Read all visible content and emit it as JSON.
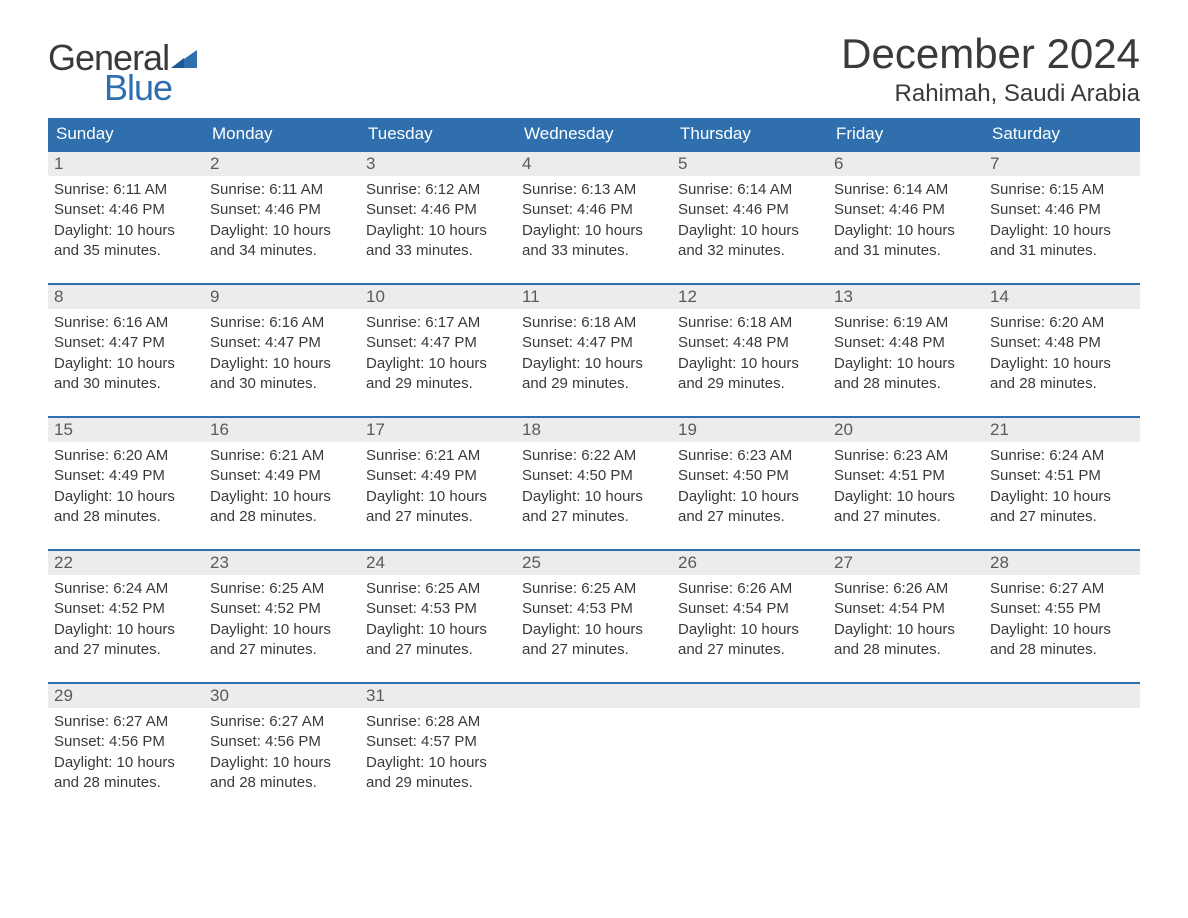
{
  "brand": {
    "word1": "General",
    "word2": "Blue"
  },
  "title": "December 2024",
  "location": "Rahimah, Saudi Arabia",
  "colors": {
    "header_bg": "#2f6fae",
    "header_text": "#ffffff",
    "daynum_bg": "#ececec",
    "border_top": "#2f6fae",
    "text": "#3a3a3a",
    "logo_blue": "#2f6fae"
  },
  "day_headers": [
    "Sunday",
    "Monday",
    "Tuesday",
    "Wednesday",
    "Thursday",
    "Friday",
    "Saturday"
  ],
  "weeks": [
    [
      {
        "n": "1",
        "sr": "Sunrise: 6:11 AM",
        "ss": "Sunset: 4:46 PM",
        "d1": "Daylight: 10 hours",
        "d2": "and 35 minutes."
      },
      {
        "n": "2",
        "sr": "Sunrise: 6:11 AM",
        "ss": "Sunset: 4:46 PM",
        "d1": "Daylight: 10 hours",
        "d2": "and 34 minutes."
      },
      {
        "n": "3",
        "sr": "Sunrise: 6:12 AM",
        "ss": "Sunset: 4:46 PM",
        "d1": "Daylight: 10 hours",
        "d2": "and 33 minutes."
      },
      {
        "n": "4",
        "sr": "Sunrise: 6:13 AM",
        "ss": "Sunset: 4:46 PM",
        "d1": "Daylight: 10 hours",
        "d2": "and 33 minutes."
      },
      {
        "n": "5",
        "sr": "Sunrise: 6:14 AM",
        "ss": "Sunset: 4:46 PM",
        "d1": "Daylight: 10 hours",
        "d2": "and 32 minutes."
      },
      {
        "n": "6",
        "sr": "Sunrise: 6:14 AM",
        "ss": "Sunset: 4:46 PM",
        "d1": "Daylight: 10 hours",
        "d2": "and 31 minutes."
      },
      {
        "n": "7",
        "sr": "Sunrise: 6:15 AM",
        "ss": "Sunset: 4:46 PM",
        "d1": "Daylight: 10 hours",
        "d2": "and 31 minutes."
      }
    ],
    [
      {
        "n": "8",
        "sr": "Sunrise: 6:16 AM",
        "ss": "Sunset: 4:47 PM",
        "d1": "Daylight: 10 hours",
        "d2": "and 30 minutes."
      },
      {
        "n": "9",
        "sr": "Sunrise: 6:16 AM",
        "ss": "Sunset: 4:47 PM",
        "d1": "Daylight: 10 hours",
        "d2": "and 30 minutes."
      },
      {
        "n": "10",
        "sr": "Sunrise: 6:17 AM",
        "ss": "Sunset: 4:47 PM",
        "d1": "Daylight: 10 hours",
        "d2": "and 29 minutes."
      },
      {
        "n": "11",
        "sr": "Sunrise: 6:18 AM",
        "ss": "Sunset: 4:47 PM",
        "d1": "Daylight: 10 hours",
        "d2": "and 29 minutes."
      },
      {
        "n": "12",
        "sr": "Sunrise: 6:18 AM",
        "ss": "Sunset: 4:48 PM",
        "d1": "Daylight: 10 hours",
        "d2": "and 29 minutes."
      },
      {
        "n": "13",
        "sr": "Sunrise: 6:19 AM",
        "ss": "Sunset: 4:48 PM",
        "d1": "Daylight: 10 hours",
        "d2": "and 28 minutes."
      },
      {
        "n": "14",
        "sr": "Sunrise: 6:20 AM",
        "ss": "Sunset: 4:48 PM",
        "d1": "Daylight: 10 hours",
        "d2": "and 28 minutes."
      }
    ],
    [
      {
        "n": "15",
        "sr": "Sunrise: 6:20 AM",
        "ss": "Sunset: 4:49 PM",
        "d1": "Daylight: 10 hours",
        "d2": "and 28 minutes."
      },
      {
        "n": "16",
        "sr": "Sunrise: 6:21 AM",
        "ss": "Sunset: 4:49 PM",
        "d1": "Daylight: 10 hours",
        "d2": "and 28 minutes."
      },
      {
        "n": "17",
        "sr": "Sunrise: 6:21 AM",
        "ss": "Sunset: 4:49 PM",
        "d1": "Daylight: 10 hours",
        "d2": "and 27 minutes."
      },
      {
        "n": "18",
        "sr": "Sunrise: 6:22 AM",
        "ss": "Sunset: 4:50 PM",
        "d1": "Daylight: 10 hours",
        "d2": "and 27 minutes."
      },
      {
        "n": "19",
        "sr": "Sunrise: 6:23 AM",
        "ss": "Sunset: 4:50 PM",
        "d1": "Daylight: 10 hours",
        "d2": "and 27 minutes."
      },
      {
        "n": "20",
        "sr": "Sunrise: 6:23 AM",
        "ss": "Sunset: 4:51 PM",
        "d1": "Daylight: 10 hours",
        "d2": "and 27 minutes."
      },
      {
        "n": "21",
        "sr": "Sunrise: 6:24 AM",
        "ss": "Sunset: 4:51 PM",
        "d1": "Daylight: 10 hours",
        "d2": "and 27 minutes."
      }
    ],
    [
      {
        "n": "22",
        "sr": "Sunrise: 6:24 AM",
        "ss": "Sunset: 4:52 PM",
        "d1": "Daylight: 10 hours",
        "d2": "and 27 minutes."
      },
      {
        "n": "23",
        "sr": "Sunrise: 6:25 AM",
        "ss": "Sunset: 4:52 PM",
        "d1": "Daylight: 10 hours",
        "d2": "and 27 minutes."
      },
      {
        "n": "24",
        "sr": "Sunrise: 6:25 AM",
        "ss": "Sunset: 4:53 PM",
        "d1": "Daylight: 10 hours",
        "d2": "and 27 minutes."
      },
      {
        "n": "25",
        "sr": "Sunrise: 6:25 AM",
        "ss": "Sunset: 4:53 PM",
        "d1": "Daylight: 10 hours",
        "d2": "and 27 minutes."
      },
      {
        "n": "26",
        "sr": "Sunrise: 6:26 AM",
        "ss": "Sunset: 4:54 PM",
        "d1": "Daylight: 10 hours",
        "d2": "and 27 minutes."
      },
      {
        "n": "27",
        "sr": "Sunrise: 6:26 AM",
        "ss": "Sunset: 4:54 PM",
        "d1": "Daylight: 10 hours",
        "d2": "and 28 minutes."
      },
      {
        "n": "28",
        "sr": "Sunrise: 6:27 AM",
        "ss": "Sunset: 4:55 PM",
        "d1": "Daylight: 10 hours",
        "d2": "and 28 minutes."
      }
    ],
    [
      {
        "n": "29",
        "sr": "Sunrise: 6:27 AM",
        "ss": "Sunset: 4:56 PM",
        "d1": "Daylight: 10 hours",
        "d2": "and 28 minutes."
      },
      {
        "n": "30",
        "sr": "Sunrise: 6:27 AM",
        "ss": "Sunset: 4:56 PM",
        "d1": "Daylight: 10 hours",
        "d2": "and 28 minutes."
      },
      {
        "n": "31",
        "sr": "Sunrise: 6:28 AM",
        "ss": "Sunset: 4:57 PM",
        "d1": "Daylight: 10 hours",
        "d2": "and 29 minutes."
      },
      {
        "empty": true
      },
      {
        "empty": true
      },
      {
        "empty": true
      },
      {
        "empty": true
      }
    ]
  ]
}
